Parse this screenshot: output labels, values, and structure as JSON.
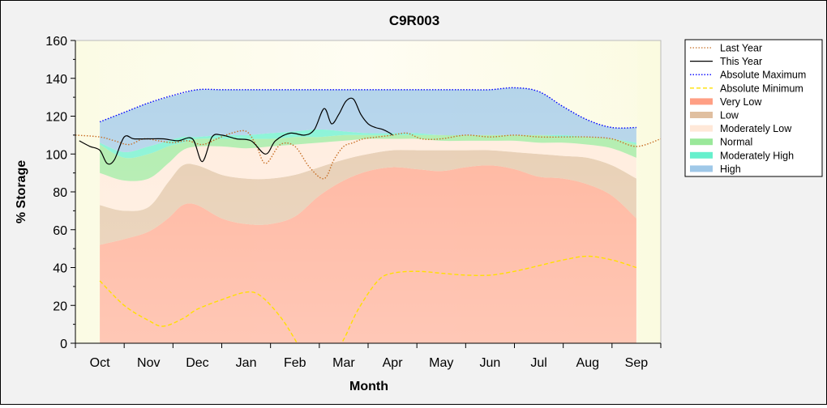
{
  "chart_data": {
    "type": "area",
    "title": "C9R003",
    "xlabel": "Month",
    "ylabel": "% Storage",
    "ylim": [
      0,
      160
    ],
    "yticks": [
      0,
      20,
      40,
      60,
      80,
      100,
      120,
      140,
      160
    ],
    "categories": [
      "Oct",
      "Nov",
      "Dec",
      "Jan",
      "Feb",
      "Mar",
      "Apr",
      "May",
      "Jun",
      "Jul",
      "Aug",
      "Sep"
    ],
    "x_index_range": [
      -0.5,
      11.5
    ],
    "grid": false,
    "legend_position": "right",
    "bands": [
      {
        "name": "Very Low",
        "color": "#ff9f84",
        "x": [
          0,
          0.5,
          1,
          1.4,
          1.7,
          2,
          2.5,
          3,
          3.5,
          4,
          4.5,
          5,
          5.5,
          6,
          6.5,
          7,
          7.5,
          8,
          8.5,
          9,
          9.5,
          10,
          10.5,
          11
        ],
        "lower": [
          0,
          0,
          0,
          0,
          0,
          0,
          0,
          0,
          0,
          0,
          0,
          0,
          0,
          0,
          0,
          0,
          0,
          0,
          0,
          0,
          0,
          0,
          0,
          0
        ],
        "upper": [
          52,
          55,
          59,
          66,
          73,
          73,
          66,
          63,
          63,
          67,
          78,
          86,
          91,
          93,
          92,
          91,
          93,
          94,
          92,
          88,
          87,
          84,
          78,
          66
        ]
      },
      {
        "name": "Low",
        "color": "#e0bfa0",
        "x": [
          0,
          0.5,
          1,
          1.4,
          1.7,
          2,
          2.5,
          3,
          3.5,
          4,
          4.5,
          5,
          5.5,
          6,
          6.5,
          7,
          7.5,
          8,
          8.5,
          9,
          9.5,
          10,
          10.5,
          11
        ],
        "lower": [
          52,
          55,
          59,
          66,
          73,
          73,
          66,
          63,
          63,
          67,
          78,
          86,
          91,
          93,
          92,
          91,
          93,
          94,
          92,
          88,
          87,
          84,
          78,
          66
        ],
        "upper": [
          73,
          70,
          72,
          85,
          94,
          94,
          89,
          87,
          87,
          89,
          93,
          97,
          100,
          102,
          102,
          102,
          102,
          102,
          101,
          100,
          99,
          98,
          94,
          87
        ]
      },
      {
        "name": "Moderately Low",
        "color": "#ffe8d8",
        "x": [
          0,
          0.5,
          1,
          1.4,
          1.7,
          2,
          2.5,
          3,
          3.5,
          4,
          4.5,
          5,
          5.5,
          6,
          6.5,
          7,
          7.5,
          8,
          8.5,
          9,
          9.5,
          10,
          10.5,
          11
        ],
        "lower": [
          73,
          70,
          72,
          85,
          94,
          94,
          89,
          87,
          87,
          89,
          93,
          97,
          100,
          102,
          102,
          102,
          102,
          102,
          101,
          100,
          99,
          98,
          94,
          87
        ],
        "upper": [
          90,
          86,
          87,
          95,
          102,
          104,
          104,
          103,
          104,
          105,
          106,
          107,
          108,
          108,
          108,
          107,
          107,
          107,
          107,
          106,
          106,
          105,
          103,
          98
        ]
      },
      {
        "name": "Normal",
        "color": "#9ae89a",
        "x": [
          0,
          0.5,
          1,
          1.4,
          1.7,
          2,
          2.5,
          3,
          3.5,
          4,
          4.5,
          5,
          5.5,
          6,
          6.5,
          7,
          7.5,
          8,
          8.5,
          9,
          9.5,
          10,
          10.5,
          11
        ],
        "lower": [
          90,
          86,
          87,
          95,
          102,
          104,
          104,
          103,
          104,
          105,
          106,
          107,
          108,
          108,
          108,
          107,
          107,
          107,
          107,
          106,
          106,
          105,
          103,
          98
        ],
        "upper": [
          105,
          98,
          100,
          104,
          106,
          108,
          108,
          108,
          108,
          109,
          109,
          110,
          110,
          110,
          110,
          110,
          110,
          110,
          110,
          110,
          109,
          109,
          108,
          105
        ]
      },
      {
        "name": "Moderately High",
        "color": "#66f0cc",
        "x": [
          0,
          0.5,
          1,
          1.4,
          1.7,
          2,
          2.5,
          3,
          3.5,
          4,
          4.5,
          5,
          5.5,
          6,
          6.5,
          7,
          7.5,
          8,
          8.5,
          9,
          9.5,
          10,
          10.5,
          11
        ],
        "lower": [
          105,
          98,
          100,
          104,
          106,
          108,
          108,
          108,
          108,
          109,
          109,
          110,
          110,
          110,
          110,
          110,
          110,
          110,
          110,
          110,
          109,
          109,
          108,
          105
        ],
        "upper": [
          106,
          101,
          104,
          107,
          109,
          109,
          110,
          110,
          111,
          112,
          113,
          112,
          111,
          111,
          111,
          110,
          110,
          110,
          110,
          110,
          110,
          109,
          108,
          106
        ]
      },
      {
        "name": "High",
        "color": "#9fc8e8",
        "x": [
          0,
          0.5,
          1,
          1.4,
          1.7,
          2,
          2.5,
          3,
          3.5,
          4,
          4.5,
          5,
          5.5,
          6,
          6.5,
          7,
          7.5,
          8,
          8.5,
          9,
          9.5,
          10,
          10.5,
          11
        ],
        "lower": [
          106,
          101,
          104,
          107,
          109,
          109,
          110,
          110,
          111,
          112,
          113,
          112,
          111,
          111,
          111,
          110,
          110,
          110,
          110,
          110,
          110,
          109,
          108,
          106
        ],
        "upper": [
          117,
          122,
          127,
          130,
          132,
          134,
          134,
          134,
          134,
          134,
          134,
          134,
          134,
          134,
          134,
          134,
          134,
          134,
          135,
          133,
          125,
          118,
          114,
          114
        ]
      }
    ],
    "series": [
      {
        "name": "Absolute Maximum",
        "color": "#0000ff",
        "style": "dotted",
        "x": [
          0,
          0.5,
          1,
          1.5,
          2,
          2.5,
          3,
          4,
          5,
          6,
          7,
          7.5,
          8,
          8.5,
          9,
          9.5,
          10,
          10.5,
          11
        ],
        "y": [
          117,
          122,
          127,
          131,
          134,
          134,
          134,
          134,
          134,
          134,
          134,
          134,
          134,
          135,
          133,
          125,
          118,
          114,
          114
        ]
      },
      {
        "name": "Absolute Minimum",
        "color": "#ffe000",
        "style": "dashed",
        "x": [
          0,
          0.5,
          1,
          1.3,
          1.7,
          2,
          2.5,
          3,
          3.3,
          3.7,
          4,
          4.3,
          4.7,
          5,
          5.3,
          5.7,
          6,
          6.5,
          7,
          7.5,
          8,
          8.5,
          9,
          9.5,
          10,
          10.5,
          11
        ],
        "y": [
          33,
          20,
          12,
          9,
          13,
          18,
          23,
          27,
          25,
          14,
          2,
          -12,
          -10,
          2,
          18,
          33,
          37,
          38,
          37,
          36,
          36,
          38,
          41,
          44,
          46,
          44,
          40
        ]
      },
      {
        "name": "Last Year",
        "color": "#c87028",
        "style": "dotted",
        "x": [
          -0.5,
          0,
          0.3,
          0.6,
          0.9,
          1.2,
          1.5,
          1.8,
          2.1,
          2.4,
          2.7,
          3.0,
          3.2,
          3.4,
          3.7,
          4.0,
          4.3,
          4.6,
          4.8,
          5.0,
          5.2,
          5.4,
          5.7,
          6.0,
          6.3,
          6.6,
          7.0,
          7.5,
          8.0,
          8.5,
          9.0,
          9.5,
          10.0,
          10.5,
          11.0,
          11.5
        ],
        "y": [
          110,
          109,
          107,
          105,
          108,
          107,
          106,
          107,
          105,
          108,
          111,
          112,
          105,
          95,
          105,
          104,
          93,
          87,
          97,
          104,
          106,
          108,
          109,
          110,
          111,
          108,
          108,
          110,
          109,
          110,
          109,
          109,
          109,
          108,
          104,
          108
        ]
      },
      {
        "name": "This Year",
        "color": "#000000",
        "style": "solid",
        "x": [
          -0.42,
          -0.2,
          0,
          0.15,
          0.3,
          0.5,
          0.7,
          1.0,
          1.3,
          1.6,
          1.9,
          2.1,
          2.3,
          2.5,
          2.8,
          3.1,
          3.4,
          3.6,
          3.9,
          4.2,
          4.4,
          4.6,
          4.75,
          4.9,
          5.05,
          5.2,
          5.35,
          5.5,
          5.65,
          5.8,
          5.95,
          6.0
        ],
        "y": [
          107,
          104,
          102,
          95,
          97,
          109,
          108,
          108,
          108,
          107,
          108,
          96,
          109,
          110,
          108,
          107,
          100,
          107,
          111,
          110,
          113,
          124,
          116,
          121,
          128,
          129,
          121,
          116,
          114,
          113,
          111,
          110
        ]
      }
    ],
    "legend": [
      {
        "label": "Last Year",
        "kind": "line",
        "color": "#c87028",
        "style": "dotted"
      },
      {
        "label": "This Year",
        "kind": "line",
        "color": "#000000",
        "style": "solid"
      },
      {
        "label": "Absolute Maximum",
        "kind": "line",
        "color": "#0000ff",
        "style": "dotted"
      },
      {
        "label": "Absolute Minimum",
        "kind": "line",
        "color": "#ffe000",
        "style": "dashed"
      },
      {
        "label": "Very Low",
        "kind": "swatch",
        "color": "#ff9f84"
      },
      {
        "label": "Low",
        "kind": "swatch",
        "color": "#e0bfa0"
      },
      {
        "label": "Moderately Low",
        "kind": "swatch",
        "color": "#ffe8d8"
      },
      {
        "label": "Normal",
        "kind": "swatch",
        "color": "#9ae89a"
      },
      {
        "label": "Moderately High",
        "kind": "swatch",
        "color": "#66f0cc"
      },
      {
        "label": "High",
        "kind": "swatch",
        "color": "#9fc8e8"
      }
    ]
  }
}
